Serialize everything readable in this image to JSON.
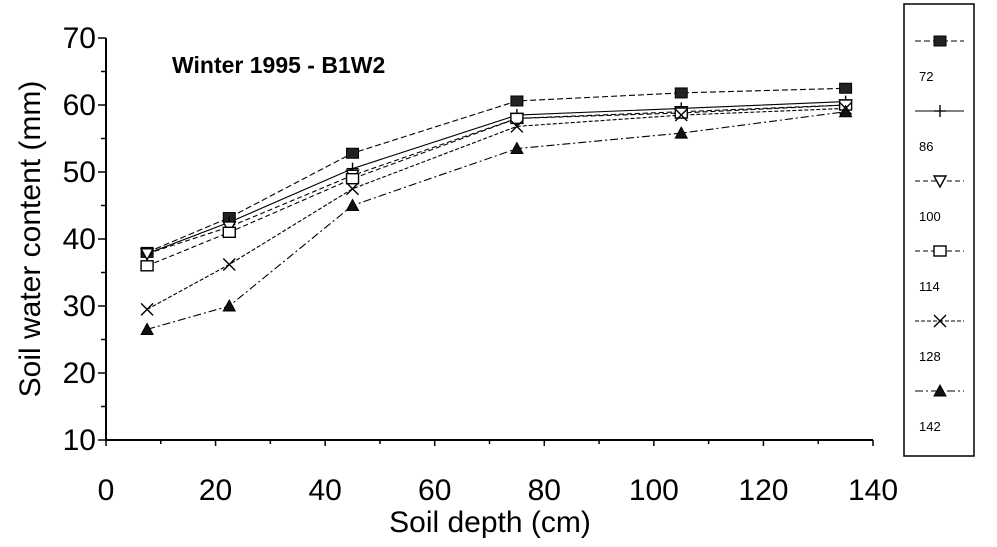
{
  "chart_data": {
    "type": "line",
    "title": "Winter 1995 - B1W2",
    "xlabel": "Soil depth (cm)",
    "ylabel": "Soil water content (mm)",
    "xlim": [
      0,
      140
    ],
    "ylim": [
      10,
      70
    ],
    "x_ticks": [
      "0",
      "20",
      "40",
      "60",
      "80",
      "100",
      "120",
      "140"
    ],
    "y_ticks": [
      "10",
      "20",
      "30",
      "40",
      "50",
      "60",
      "70"
    ],
    "grid": false,
    "legend_position": "right",
    "x": [
      7.5,
      22.5,
      45,
      75,
      105,
      135
    ],
    "series": [
      {
        "name": "72",
        "marker": "filled-square",
        "values": [
          38.0,
          43.2,
          52.8,
          60.6,
          61.8,
          62.5
        ]
      },
      {
        "name": "86",
        "marker": "plus",
        "values": [
          37.8,
          42.5,
          50.5,
          58.5,
          59.5,
          60.5
        ]
      },
      {
        "name": "100",
        "marker": "down-triangle",
        "values": [
          37.8,
          41.8,
          49.5,
          58.0,
          59.0,
          60.0
        ]
      },
      {
        "name": "114",
        "marker": "open-square",
        "values": [
          36.0,
          41.0,
          49.0,
          58.0,
          58.8,
          60.0
        ]
      },
      {
        "name": "128",
        "marker": "x",
        "values": [
          29.5,
          36.2,
          47.5,
          56.8,
          58.5,
          59.5
        ]
      },
      {
        "name": "142",
        "marker": "filled-triangle",
        "values": [
          26.5,
          30.0,
          45.0,
          53.5,
          55.8,
          59.0
        ]
      }
    ]
  }
}
